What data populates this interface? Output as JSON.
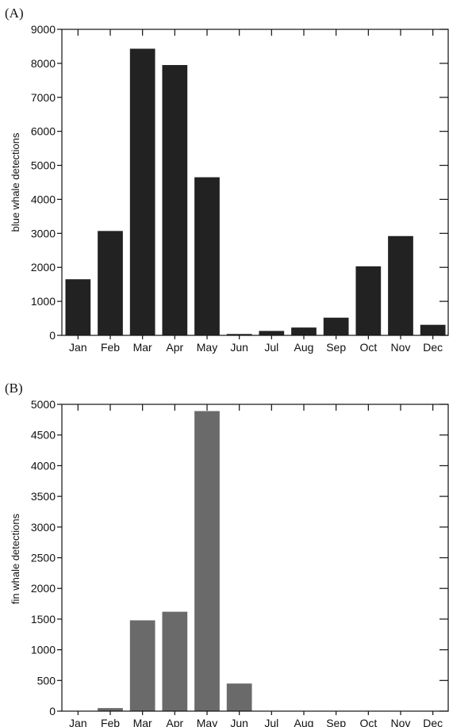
{
  "chart_data": [
    {
      "type": "bar",
      "panel_label": "(A)",
      "ylabel": "blue whale detections",
      "ylim": [
        0,
        9000
      ],
      "yticks": [
        0,
        1000,
        2000,
        3000,
        4000,
        5000,
        6000,
        7000,
        8000,
        9000
      ],
      "categories": [
        "Jan",
        "Feb",
        "Mar",
        "Apr",
        "May",
        "Jun",
        "Jul",
        "Aug",
        "Sep",
        "Oct",
        "Nov",
        "Dec"
      ],
      "values": [
        1650,
        3070,
        8430,
        7950,
        4650,
        40,
        130,
        230,
        520,
        2030,
        2920,
        310
      ],
      "bar_color": "#222222",
      "grid": false
    },
    {
      "type": "bar",
      "panel_label": "(B)",
      "ylabel": "fin whale detections",
      "ylim": [
        0,
        5000
      ],
      "yticks": [
        0,
        500,
        1000,
        1500,
        2000,
        2500,
        3000,
        3500,
        4000,
        4500,
        5000
      ],
      "categories": [
        "Jan",
        "Feb",
        "Mar",
        "Apr",
        "May",
        "Jun",
        "Jul",
        "Aug",
        "Sep",
        "Oct",
        "Nov",
        "Dec"
      ],
      "values": [
        0,
        50,
        1480,
        1620,
        4890,
        450,
        0,
        0,
        0,
        0,
        0,
        0
      ],
      "bar_color": "#6a6a6a",
      "grid": false
    }
  ]
}
